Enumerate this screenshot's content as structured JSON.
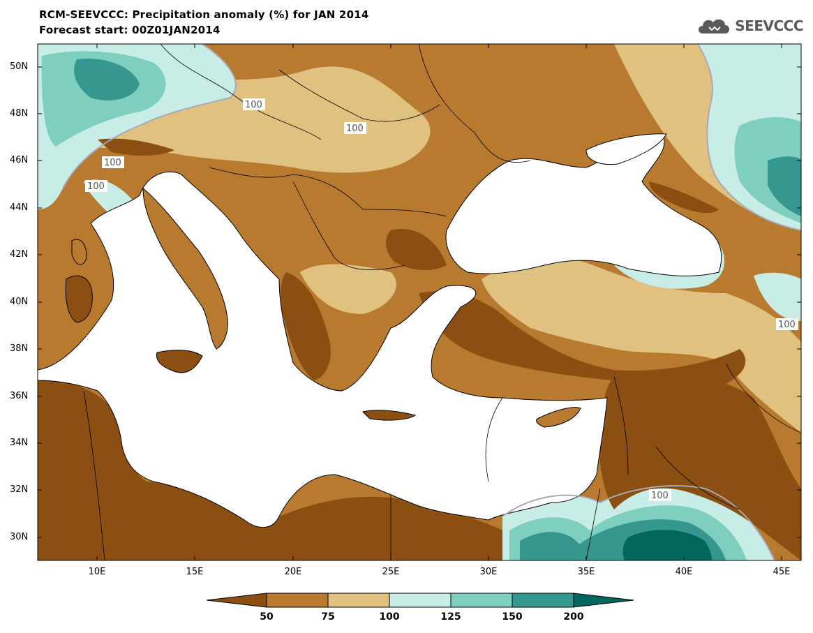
{
  "header": {
    "title": "RCM-SEEVCCC: Precipitation anomaly (%) for JAN 2014",
    "subtitle": "Forecast start: 00Z01JAN2014"
  },
  "logo": {
    "text": "SEEVCCC",
    "icon": "cloud-icon"
  },
  "axes": {
    "lat_labels": [
      "50N",
      "48N",
      "46N",
      "44N",
      "42N",
      "40N",
      "38N",
      "36N",
      "34N",
      "32N",
      "30N"
    ],
    "lon_labels": [
      "10E",
      "15E",
      "20E",
      "25E",
      "30E",
      "35E",
      "40E",
      "45E"
    ],
    "lon_range": [
      7,
      46
    ],
    "lat_range": [
      29,
      51
    ]
  },
  "contour_labels": [
    "100",
    "100",
    "100",
    "100",
    "100",
    "100",
    "100"
  ],
  "colorbar": {
    "levels": [
      "50",
      "75",
      "100",
      "125",
      "150",
      "200"
    ],
    "colors": [
      "#8b4f12",
      "#b87a2e",
      "#e0c17f",
      "#c8ece6",
      "#7fcfbf",
      "#35978f",
      "#01665e"
    ]
  },
  "colors": {
    "very_dry": "#8b4f12",
    "dry": "#b87a2e",
    "slightly_dry": "#e0c17f",
    "slightly_wet": "#c8ece6",
    "wet": "#7fcfbf",
    "very_wet": "#35978f",
    "extreme_wet": "#01665e",
    "sea": "#ffffff"
  }
}
